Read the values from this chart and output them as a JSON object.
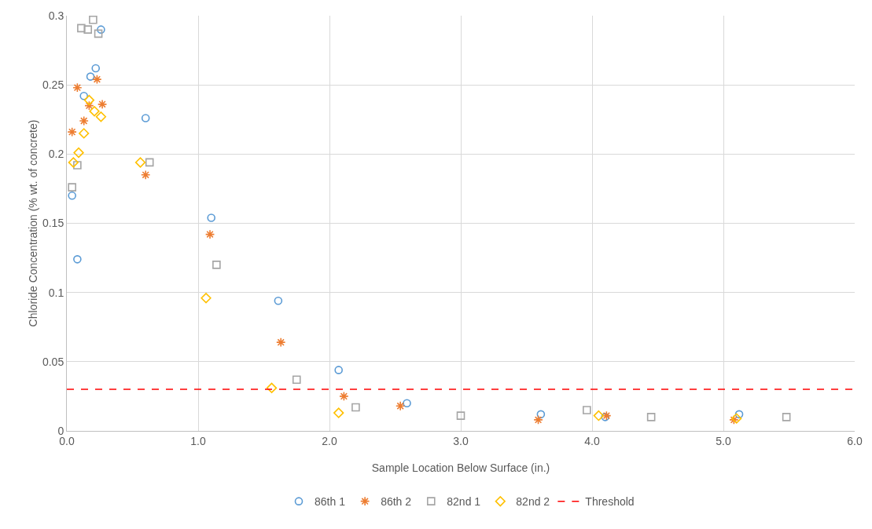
{
  "chart_data": {
    "type": "scatter",
    "xlabel": "Sample Location Below Surface (in.)",
    "ylabel": "Chloride Concentration (% wt. of concrete)",
    "xlim": [
      0,
      6
    ],
    "xticks": [
      {
        "value": 0,
        "label": "0.0"
      },
      {
        "value": 1,
        "label": "1.0"
      },
      {
        "value": 2,
        "label": "2.0"
      },
      {
        "value": 3,
        "label": "3.0"
      },
      {
        "value": 4,
        "label": "4.0"
      },
      {
        "value": 5,
        "label": "5.0"
      },
      {
        "value": 6,
        "label": "6.0"
      }
    ],
    "ylim": [
      0,
      0.3
    ],
    "yticks": [
      0,
      0.05,
      0.1,
      0.15,
      0.2,
      0.25,
      0.3
    ],
    "grid": true,
    "legend": "bottom",
    "series": [
      {
        "name": "86th 1",
        "color": "#5b9bd5",
        "marker": "circle",
        "x": [
          0.04,
          0.08,
          0.13,
          0.18,
          0.22,
          0.26,
          0.6,
          1.1,
          1.61,
          2.07,
          2.59,
          3.61,
          4.1,
          5.12
        ],
        "values": [
          0.17,
          0.124,
          0.242,
          0.256,
          0.262,
          0.29,
          0.226,
          0.154,
          0.094,
          0.044,
          0.02,
          0.012,
          0.01,
          0.012
        ]
      },
      {
        "name": "86th 2",
        "color": "#ed7d31",
        "marker": "cross",
        "x": [
          0.04,
          0.08,
          0.13,
          0.17,
          0.23,
          0.27,
          0.6,
          1.09,
          1.63,
          2.11,
          2.54,
          3.59,
          4.11,
          5.08
        ],
        "values": [
          0.216,
          0.248,
          0.224,
          0.235,
          0.254,
          0.236,
          0.185,
          0.142,
          0.064,
          0.025,
          0.018,
          0.008,
          0.011,
          0.008
        ]
      },
      {
        "name": "82nd 1",
        "color": "#a5a5a5",
        "marker": "square",
        "x": [
          0.04,
          0.08,
          0.11,
          0.16,
          0.2,
          0.24,
          0.63,
          1.14,
          1.75,
          2.2,
          3.0,
          3.96,
          4.45,
          5.48
        ],
        "values": [
          0.176,
          0.192,
          0.291,
          0.29,
          0.297,
          0.287,
          0.194,
          0.12,
          0.037,
          0.017,
          0.011,
          0.015,
          0.01,
          0.01
        ]
      },
      {
        "name": "82nd 2",
        "color": "#ffc000",
        "marker": "diamond",
        "x": [
          0.05,
          0.09,
          0.13,
          0.17,
          0.21,
          0.26,
          0.56,
          1.06,
          1.56,
          2.07,
          4.05,
          5.1
        ],
        "values": [
          0.194,
          0.201,
          0.215,
          0.239,
          0.231,
          0.227,
          0.194,
          0.096,
          0.031,
          0.013,
          0.011,
          0.009
        ]
      }
    ],
    "ref_lines": [
      {
        "axis": "y",
        "value": 0.03,
        "label": "Threshold",
        "color": "#ff0000",
        "line_style": "dashed"
      }
    ]
  }
}
